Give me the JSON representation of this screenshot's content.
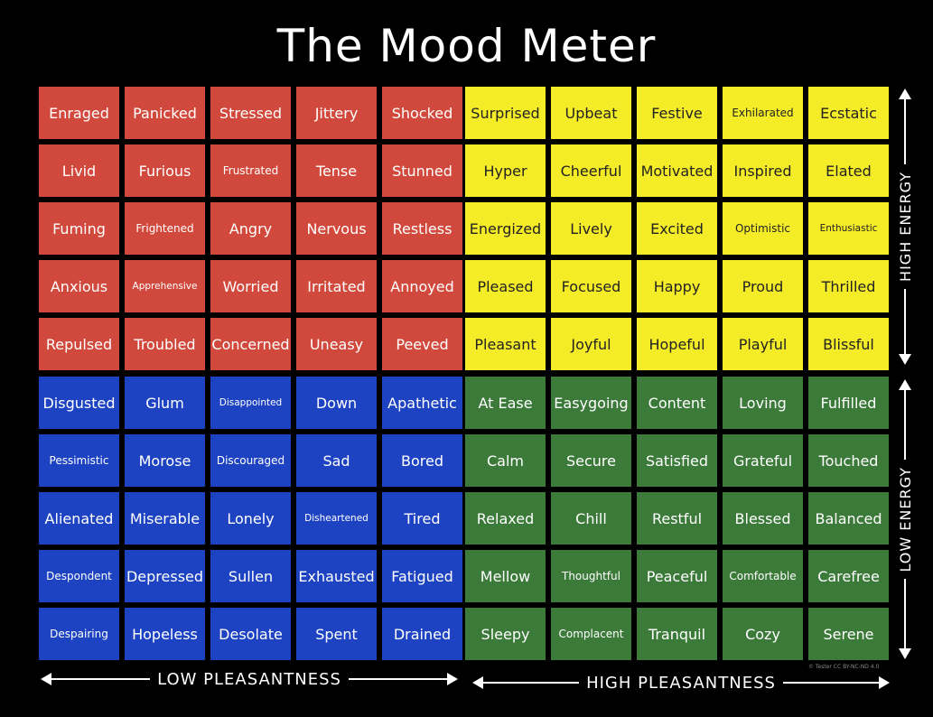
{
  "title": "The Mood Meter",
  "colors": {
    "red": "#d1493c",
    "yellow": "#f5ec28",
    "blue": "#1e43c2",
    "green": "#3c7a3a",
    "background": "#000000"
  },
  "quadrants": {
    "red": [
      [
        "Enraged",
        "Panicked",
        "Stressed",
        "Jittery",
        "Shocked"
      ],
      [
        "Livid",
        "Furious",
        "Frustrated",
        "Tense",
        "Stunned"
      ],
      [
        "Fuming",
        "Frightened",
        "Angry",
        "Nervous",
        "Restless"
      ],
      [
        "Anxious",
        "Apprehensive",
        "Worried",
        "Irritated",
        "Annoyed"
      ],
      [
        "Repulsed",
        "Troubled",
        "Concerned",
        "Uneasy",
        "Peeved"
      ]
    ],
    "yellow": [
      [
        "Surprised",
        "Upbeat",
        "Festive",
        "Exhilarated",
        "Ecstatic"
      ],
      [
        "Hyper",
        "Cheerful",
        "Motivated",
        "Inspired",
        "Elated"
      ],
      [
        "Energized",
        "Lively",
        "Excited",
        "Optimistic",
        "Enthusiastic"
      ],
      [
        "Pleased",
        "Focused",
        "Happy",
        "Proud",
        "Thrilled"
      ],
      [
        "Pleasant",
        "Joyful",
        "Hopeful",
        "Playful",
        "Blissful"
      ]
    ],
    "blue": [
      [
        "Disgusted",
        "Glum",
        "Disappointed",
        "Down",
        "Apathetic"
      ],
      [
        "Pessimistic",
        "Morose",
        "Discouraged",
        "Sad",
        "Bored"
      ],
      [
        "Alienated",
        "Miserable",
        "Lonely",
        "Disheartened",
        "Tired"
      ],
      [
        "Despondent",
        "Depressed",
        "Sullen",
        "Exhausted",
        "Fatigued"
      ],
      [
        "Despairing",
        "Hopeless",
        "Desolate",
        "Spent",
        "Drained"
      ]
    ],
    "green": [
      [
        "At Ease",
        "Easygoing",
        "Content",
        "Loving",
        "Fulfilled"
      ],
      [
        "Calm",
        "Secure",
        "Satisfied",
        "Grateful",
        "Touched"
      ],
      [
        "Relaxed",
        "Chill",
        "Restful",
        "Blessed",
        "Balanced"
      ],
      [
        "Mellow",
        "Thoughtful",
        "Peaceful",
        "Comfortable",
        "Carefree"
      ],
      [
        "Sleepy",
        "Complacent",
        "Tranquil",
        "Cozy",
        "Serene"
      ]
    ]
  },
  "axes": {
    "low_pleasantness": "LOW PLEASANTNESS",
    "high_pleasantness": "HIGH PLEASANTNESS",
    "high_energy": "HIGH ENERGY",
    "low_energy": "LOW ENERGY"
  },
  "credit": "© Tester CC BY-NC-ND 4.0"
}
